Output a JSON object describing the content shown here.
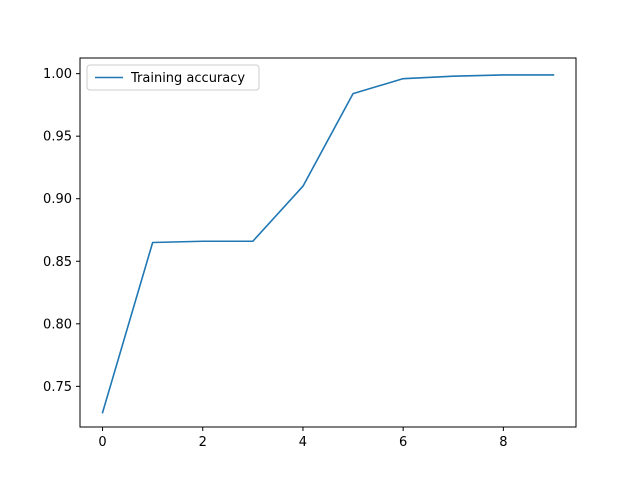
{
  "chart_data": {
    "type": "line",
    "title": "",
    "xlabel": "",
    "ylabel": "",
    "xlim": [
      -0.45,
      9.45
    ],
    "ylim": [
      0.7175,
      1.0125
    ],
    "x_ticks": [
      0,
      2,
      4,
      6,
      8
    ],
    "y_ticks": [
      0.75,
      0.8,
      0.85,
      0.9,
      0.95,
      1.0
    ],
    "x_tick_labels": [
      "0",
      "2",
      "4",
      "6",
      "8"
    ],
    "y_tick_labels": [
      "0.75",
      "0.80",
      "0.85",
      "0.90",
      "0.95",
      "1.00"
    ],
    "grid": false,
    "legend_position": "top-left",
    "series": [
      {
        "name": "Training accuracy",
        "color": "#1f77b4",
        "x": [
          0,
          1,
          2,
          3,
          4,
          5,
          6,
          7,
          8,
          9
        ],
        "y": [
          0.729,
          0.865,
          0.866,
          0.866,
          0.91,
          0.984,
          0.996,
          0.998,
          0.999,
          0.999
        ]
      }
    ]
  }
}
